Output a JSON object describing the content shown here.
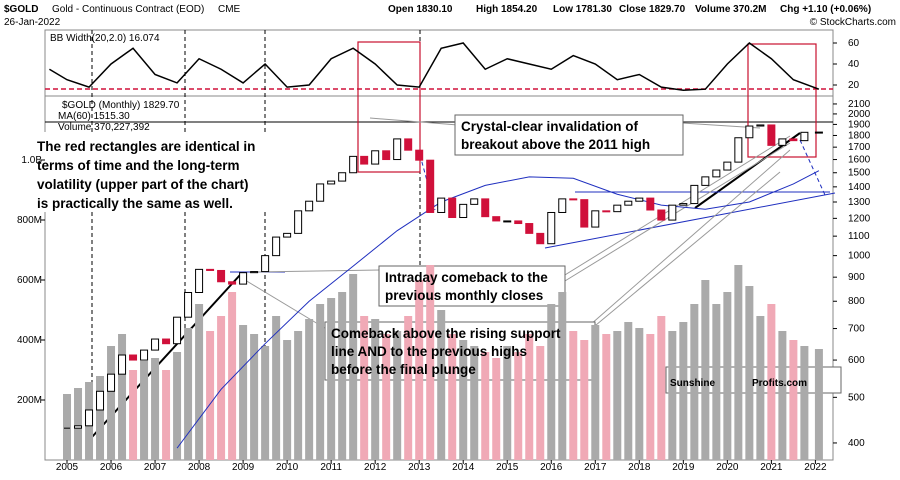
{
  "header": {
    "symbol": "$GOLD",
    "name": "Gold - Continuous Contract (EOD)",
    "exchange": "CME",
    "date": "26-Jan-2022",
    "open": "Open 1830.10",
    "high": "High 1854.20",
    "low": "Low 1781.30",
    "close": "Close 1829.70",
    "volume": "Volume 370.2M",
    "change": "Chg +1.10 (+0.06%)",
    "credit": "© StockCharts.com"
  },
  "chart_data": [
    {
      "type": "line",
      "name": "BB Width",
      "legend": "BB Width(20,2.0) 16.074",
      "color": "#000",
      "x": [
        2004.6,
        2005,
        2005.5,
        2006,
        2006.5,
        2007,
        2007.5,
        2008,
        2008.5,
        2009,
        2009.5,
        2010,
        2010.5,
        2011,
        2011.5,
        2012,
        2012.5,
        2013,
        2013.5,
        2014,
        2014.5,
        2015,
        2015.5,
        2016,
        2016.5,
        2017,
        2017.5,
        2018,
        2018.5,
        2019,
        2019.5,
        2020,
        2020.5,
        2021,
        2021.5,
        2022.08
      ],
      "values": [
        35,
        25,
        18,
        40,
        55,
        30,
        22,
        45,
        35,
        22,
        40,
        18,
        20,
        45,
        55,
        40,
        20,
        18,
        55,
        60,
        35,
        45,
        40,
        35,
        48,
        40,
        25,
        30,
        18,
        15,
        16,
        40,
        60,
        45,
        25,
        16
      ],
      "xlim": [
        2004.5,
        2022.4
      ],
      "ylim": [
        10,
        70
      ],
      "yticks": [
        20,
        40,
        60
      ]
    },
    {
      "type": "candlestick",
      "legend": "$GOLD (Monthly) 1829.70",
      "ma_legend": "MA(60) 1515.30",
      "volume_legend": "Volume 370,227,392",
      "x": [
        2005,
        2005.25,
        2005.5,
        2005.75,
        2006,
        2006.25,
        2006.5,
        2006.75,
        2007,
        2007.25,
        2007.5,
        2007.75,
        2008,
        2008.25,
        2008.5,
        2008.75,
        2009,
        2009.25,
        2009.5,
        2009.75,
        2010,
        2010.25,
        2010.5,
        2010.75,
        2011,
        2011.25,
        2011.5,
        2011.75,
        2012,
        2012.25,
        2012.5,
        2012.75,
        2013,
        2013.25,
        2013.5,
        2013.75,
        2014,
        2014.25,
        2014.5,
        2014.75,
        2015,
        2015.25,
        2015.5,
        2015.75,
        2016,
        2016.25,
        2016.5,
        2016.75,
        2017,
        2017.25,
        2017.5,
        2017.75,
        2018,
        2018.25,
        2018.5,
        2018.75,
        2019,
        2019.25,
        2019.5,
        2019.75,
        2020,
        2020.25,
        2020.5,
        2020.75,
        2021,
        2021.25,
        2021.5,
        2021.75,
        2022.08
      ],
      "close": [
        430,
        435,
        470,
        515,
        560,
        615,
        600,
        630,
        665,
        650,
        740,
        835,
        935,
        930,
        880,
        870,
        920,
        925,
        1000,
        1095,
        1115,
        1245,
        1305,
        1420,
        1440,
        1500,
        1625,
        1565,
        1670,
        1600,
        1770,
        1675,
        1595,
        1235,
        1325,
        1205,
        1285,
        1320,
        1210,
        1185,
        1185,
        1170,
        1115,
        1060,
        1235,
        1320,
        1315,
        1150,
        1245,
        1240,
        1280,
        1305,
        1325,
        1250,
        1190,
        1280,
        1290,
        1410,
        1470,
        1520,
        1580,
        1780,
        1885,
        1895,
        1715,
        1770,
        1755,
        1828,
        1830
      ],
      "volume": [
        220,
        240,
        260,
        280,
        380,
        420,
        300,
        330,
        340,
        300,
        360,
        440,
        520,
        430,
        480,
        560,
        450,
        420,
        380,
        480,
        400,
        430,
        470,
        520,
        540,
        560,
        620,
        480,
        470,
        420,
        430,
        480,
        600,
        650,
        500,
        420,
        400,
        380,
        360,
        340,
        380,
        360,
        420,
        380,
        520,
        560,
        430,
        400,
        450,
        420,
        430,
        460,
        440,
        420,
        480,
        430,
        460,
        520,
        600,
        520,
        560,
        650,
        580,
        480,
        520,
        430,
        400,
        380,
        370
      ],
      "ma_x": [
        2007.5,
        2008.5,
        2009.5,
        2010.5,
        2011.5,
        2012.5,
        2013.5,
        2014.5,
        2015.5,
        2016.5,
        2017.5,
        2018.5,
        2019.5,
        2020.5,
        2021.5,
        2022.08
      ],
      "ma": [
        390,
        520,
        650,
        800,
        950,
        1130,
        1300,
        1410,
        1470,
        1460,
        1350,
        1280,
        1255,
        1300,
        1420,
        1515
      ],
      "xlim": [
        2004.5,
        2022.4
      ],
      "xticks": [
        2005,
        2006,
        2007,
        2008,
        2009,
        2010,
        2011,
        2012,
        2013,
        2014,
        2015,
        2016,
        2017,
        2018,
        2019,
        2020,
        2021,
        2022
      ],
      "ylim": [
        368,
        2141
      ],
      "log": true,
      "yticks": [
        400,
        500,
        600,
        700,
        800,
        900,
        1000,
        1100,
        1200,
        1300,
        1400,
        1500,
        1600,
        1700,
        1800,
        1900,
        2000,
        2100
      ],
      "vlim": [
        0,
        1200
      ],
      "vticks": [
        {
          "value": 200,
          "label": "200M"
        },
        {
          "value": 400,
          "label": "400M"
        },
        {
          "value": 600,
          "label": "600M"
        },
        {
          "value": 800,
          "label": "800M"
        },
        {
          "value": 1000,
          "label": "1.0B"
        }
      ],
      "up_color": "#000",
      "down_color": "#d0103a",
      "ma_color": "#1f2fbf"
    }
  ],
  "notes": {
    "left": [
      "The red rectangles are identical in",
      "terms of time and the long-term",
      "volatility (upper part of the chart)",
      "is practically the same as well."
    ],
    "crystal": [
      "Crystal-clear invalidation of",
      "breakout above the 2011 high"
    ],
    "intraday": [
      "Intraday comeback to the",
      "previous monthly closes"
    ],
    "comeback": [
      "Comeback above the rising support",
      "line AND to the previous highs",
      "before the final plunge"
    ],
    "brand1": "Sunshine",
    "brand2": "Profits.com"
  }
}
